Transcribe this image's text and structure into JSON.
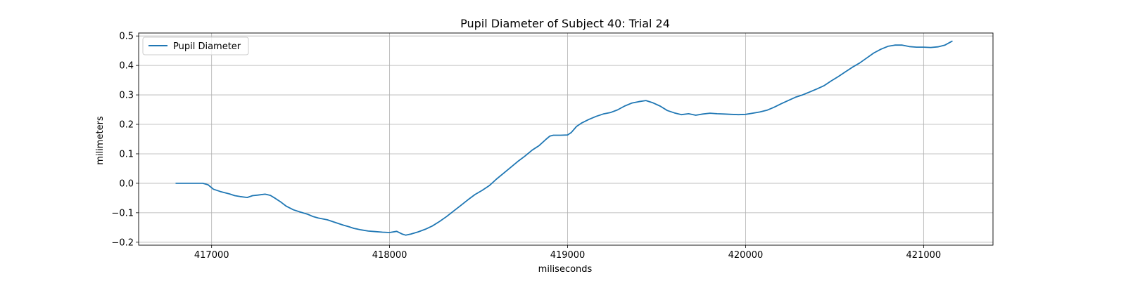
{
  "chart_data": {
    "type": "line",
    "title": "Pupil Diameter of Subject 40: Trial 24",
    "xlabel": "miliseconds",
    "ylabel": "milimeters",
    "xlim": [
      416590,
      421390
    ],
    "ylim": [
      -0.21,
      0.51
    ],
    "xticks": [
      417000,
      418000,
      419000,
      420000,
      421000
    ],
    "yticks": [
      -0.2,
      -0.1,
      0.0,
      0.1,
      0.2,
      0.3,
      0.4,
      0.5
    ],
    "ytick_labels": [
      "−0.2",
      "−0.1",
      "0.0",
      "0.1",
      "0.2",
      "0.3",
      "0.4",
      "0.5"
    ],
    "grid": true,
    "legend_position": "top-left",
    "color": "#1f77b4",
    "series": [
      {
        "name": "Pupil Diameter",
        "x": [
          416800,
          416850,
          416900,
          416950,
          416980,
          417010,
          417050,
          417100,
          417130,
          417160,
          417200,
          417230,
          417260,
          417300,
          417330,
          417360,
          417390,
          417420,
          417460,
          417500,
          417540,
          417570,
          417600,
          417650,
          417700,
          417740,
          417770,
          417800,
          417840,
          417880,
          417920,
          417960,
          418000,
          418040,
          418070,
          418090,
          418120,
          418160,
          418200,
          418240,
          418280,
          418320,
          418360,
          418400,
          418440,
          418480,
          418520,
          418560,
          418600,
          418640,
          418680,
          418720,
          418760,
          418800,
          418840,
          418880,
          418900,
          418920,
          418960,
          419000,
          419020,
          419050,
          419080,
          419120,
          419160,
          419200,
          419240,
          419280,
          419320,
          419360,
          419400,
          419440,
          419480,
          419520,
          419560,
          419600,
          419640,
          419680,
          419720,
          419760,
          419800,
          419840,
          419880,
          419920,
          419960,
          420000,
          420040,
          420080,
          420120,
          420160,
          420200,
          420240,
          420280,
          420320,
          420360,
          420400,
          420440,
          420480,
          420520,
          420560,
          420600,
          420640,
          420680,
          420720,
          420760,
          420800,
          420840,
          420880,
          420920,
          420960,
          421000,
          421040,
          421080,
          421120,
          421160
        ],
        "y": [
          0.0,
          0.0,
          0.0,
          0.0,
          -0.005,
          -0.02,
          -0.028,
          -0.036,
          -0.042,
          -0.045,
          -0.048,
          -0.042,
          -0.04,
          -0.037,
          -0.041,
          -0.052,
          -0.064,
          -0.078,
          -0.09,
          -0.098,
          -0.105,
          -0.113,
          -0.118,
          -0.124,
          -0.134,
          -0.142,
          -0.147,
          -0.153,
          -0.158,
          -0.162,
          -0.164,
          -0.166,
          -0.167,
          -0.163,
          -0.172,
          -0.176,
          -0.172,
          -0.165,
          -0.156,
          -0.145,
          -0.13,
          -0.113,
          -0.094,
          -0.075,
          -0.056,
          -0.038,
          -0.024,
          -0.008,
          0.014,
          0.034,
          0.054,
          0.074,
          0.092,
          0.112,
          0.128,
          0.15,
          0.16,
          0.163,
          0.163,
          0.164,
          0.172,
          0.193,
          0.205,
          0.217,
          0.227,
          0.235,
          0.24,
          0.249,
          0.262,
          0.272,
          0.277,
          0.281,
          0.273,
          0.262,
          0.247,
          0.239,
          0.233,
          0.236,
          0.231,
          0.235,
          0.238,
          0.236,
          0.235,
          0.234,
          0.233,
          0.234,
          0.238,
          0.242,
          0.248,
          0.258,
          0.27,
          0.281,
          0.292,
          0.3,
          0.31,
          0.32,
          0.331,
          0.347,
          0.362,
          0.378,
          0.394,
          0.408,
          0.425,
          0.442,
          0.455,
          0.465,
          0.469,
          0.469,
          0.464,
          0.462,
          0.462,
          0.461,
          0.463,
          0.469,
          0.482
        ]
      }
    ]
  }
}
